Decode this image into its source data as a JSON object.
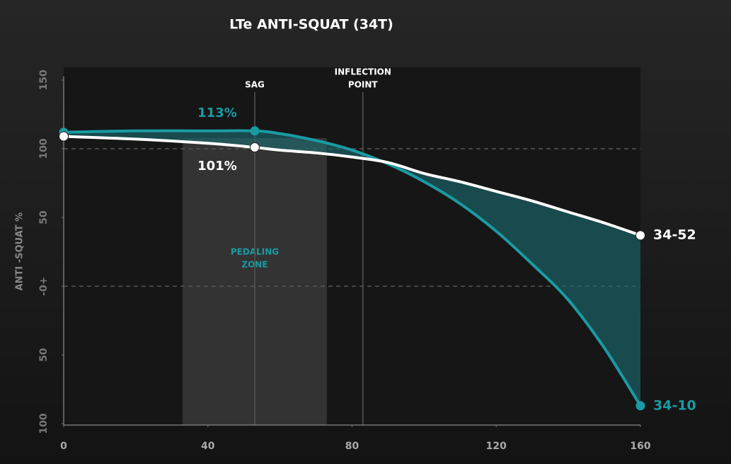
{
  "chart_data": {
    "type": "line",
    "title": "LTe ANTI-SQUAT (34T)",
    "y_label": "ANTI -SQUAT %",
    "x": [
      0,
      20,
      40,
      53,
      60,
      70,
      80,
      90,
      100,
      110,
      120,
      130,
      140,
      150,
      160
    ],
    "series": [
      {
        "name": "34-52",
        "color": "#ffffff",
        "values": [
          109,
          107,
          104,
          101,
          99,
          97,
          94,
          90,
          82,
          76,
          69,
          62,
          54,
          46,
          37
        ]
      },
      {
        "name": "34-10",
        "color": "#1a9ba3",
        "values": [
          112,
          113,
          113,
          113,
          111,
          106,
          99,
          89,
          76,
          60,
          40,
          16,
          -10,
          -45,
          -87
        ]
      }
    ],
    "markers": [
      0,
      3,
      14
    ],
    "sag_labels": [
      {
        "series": 1,
        "index": 3,
        "text": "113%"
      },
      {
        "series": 0,
        "index": 3,
        "text": "101%"
      }
    ],
    "verticals": [
      {
        "x": 53,
        "label": [
          "SAG"
        ]
      },
      {
        "x": 83,
        "label": [
          "INFLECTION",
          "POINT"
        ]
      }
    ],
    "zone": {
      "from": 33,
      "to": 73,
      "label": [
        "PEDALING",
        "ZONE"
      ]
    },
    "xlim": [
      0,
      160
    ],
    "xticks": [
      0,
      40,
      80,
      120,
      160
    ],
    "ylim": [
      -100,
      150
    ],
    "yticks": [
      {
        "value": -100,
        "label": "100"
      },
      {
        "value": -50,
        "label": "50"
      },
      {
        "value": 0,
        "label": "-0+"
      },
      50,
      100,
      150
    ],
    "dashed_y": [
      0,
      100
    ]
  }
}
